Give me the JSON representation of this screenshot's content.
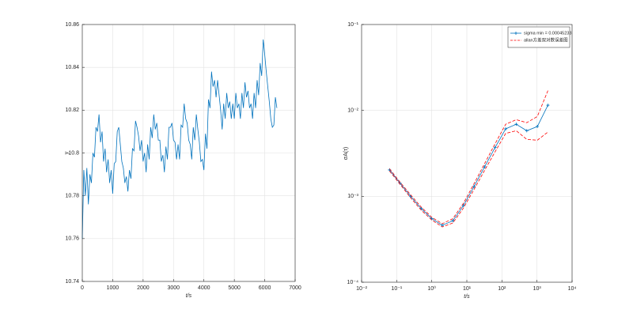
{
  "chart_data": [
    {
      "type": "line",
      "xlabel": "t/s",
      "ylabel": "y",
      "x": [
        0,
        50,
        100,
        150,
        200,
        250,
        300,
        350,
        400,
        450,
        500,
        550,
        600,
        650,
        700,
        750,
        800,
        850,
        900,
        950,
        1000,
        1050,
        1100,
        1150,
        1200,
        1250,
        1300,
        1350,
        1400,
        1450,
        1500,
        1550,
        1600,
        1650,
        1700,
        1750,
        1800,
        1850,
        1900,
        1950,
        2000,
        2050,
        2100,
        2150,
        2200,
        2250,
        2300,
        2350,
        2400,
        2450,
        2500,
        2550,
        2600,
        2650,
        2700,
        2750,
        2800,
        2850,
        2900,
        2950,
        3000,
        3050,
        3100,
        3150,
        3200,
        3250,
        3300,
        3350,
        3400,
        3450,
        3500,
        3550,
        3600,
        3650,
        3700,
        3750,
        3800,
        3850,
        3900,
        3950,
        4000,
        4050,
        4100,
        4150,
        4200,
        4250,
        4300,
        4350,
        4400,
        4450,
        4500,
        4550,
        4600,
        4650,
        4700,
        4750,
        4800,
        4850,
        4900,
        4950,
        5000,
        5050,
        5100,
        5150,
        5200,
        5250,
        5300,
        5350,
        5400,
        5450,
        5500,
        5550,
        5600,
        5650,
        5700,
        5750,
        5800,
        5850,
        5900,
        5950,
        6000,
        6050,
        6100,
        6150,
        6200,
        6250,
        6300,
        6350,
        6400
      ],
      "series": [
        {
          "color": "#0072bd",
          "values": [
            10.76,
            10.792,
            10.78,
            10.793,
            10.776,
            10.79,
            10.786,
            10.8,
            10.798,
            10.812,
            10.81,
            10.818,
            10.805,
            10.81,
            10.796,
            10.802,
            10.791,
            10.797,
            10.786,
            10.792,
            10.781,
            10.795,
            10.796,
            10.81,
            10.812,
            10.804,
            10.796,
            10.793,
            10.786,
            10.789,
            10.782,
            10.792,
            10.788,
            10.802,
            10.801,
            10.815,
            10.812,
            10.808,
            10.801,
            10.806,
            10.796,
            10.8,
            10.791,
            10.804,
            10.797,
            10.812,
            10.807,
            10.818,
            10.811,
            10.814,
            10.806,
            10.806,
            10.796,
            10.799,
            10.791,
            10.803,
            10.797,
            10.812,
            10.812,
            10.814,
            10.806,
            10.805,
            10.797,
            10.804,
            10.797,
            10.813,
            10.812,
            10.823,
            10.816,
            10.814,
            10.806,
            10.804,
            10.797,
            10.812,
            10.806,
            10.818,
            10.811,
            10.805,
            10.796,
            10.797,
            10.792,
            10.809,
            10.802,
            10.825,
            10.821,
            10.838,
            10.831,
            10.834,
            10.826,
            10.834,
            10.827,
            10.82,
            10.811,
            10.823,
            10.816,
            10.828,
            10.821,
            10.824,
            10.816,
            10.823,
            10.816,
            10.828,
            10.821,
            10.823,
            10.816,
            10.828,
            10.821,
            10.833,
            10.826,
            10.829,
            10.821,
            10.823,
            10.816,
            10.828,
            10.821,
            10.834,
            10.827,
            10.842,
            10.836,
            10.853,
            10.846,
            10.838,
            10.831,
            10.824,
            10.816,
            10.812,
            10.813,
            10.826,
            10.821
          ]
        }
      ],
      "xlim": [
        0,
        7000
      ],
      "xticks": [
        0,
        1000,
        2000,
        3000,
        4000,
        5000,
        6000,
        7000
      ],
      "ylim": [
        10.74,
        10.86
      ],
      "yticks": [
        10.74,
        10.76,
        10.78,
        10.8,
        10.82,
        10.84,
        10.86
      ],
      "grid": true
    },
    {
      "type": "line",
      "xscale": "log",
      "yscale": "log",
      "xlabel": "t/s",
      "ylabel": "σA(τ)",
      "x": [
        0.0625,
        0.125,
        0.25,
        0.5,
        1,
        2,
        4,
        8,
        16,
        32,
        64,
        128,
        256,
        512,
        1024,
        2048
      ],
      "series": [
        {
          "name": "sigma min = 0.00045233",
          "color": "#0072bd",
          "marker": "+",
          "values": [
            0.00203,
            0.00142,
            0.001,
            0.00072,
            0.00055,
            0.00046,
            0.00052,
            0.00078,
            0.0013,
            0.0022,
            0.0037,
            0.0061,
            0.0069,
            0.0058,
            0.0065,
            0.0115
          ]
        },
        {
          "name": "allan方差双对数误差图",
          "color": "#ff0000",
          "dash": true,
          "upper": [
            0.00209,
            0.00146,
            0.00104,
            0.00075,
            0.00057,
            0.00048,
            0.00055,
            0.00083,
            0.0014,
            0.0024,
            0.0041,
            0.0069,
            0.0078,
            0.0072,
            0.0085,
            0.017
          ],
          "lower": [
            0.00197,
            0.00138,
            0.00096,
            0.00069,
            0.00053,
            0.00044,
            0.00049,
            0.00073,
            0.0012,
            0.002,
            0.0033,
            0.0054,
            0.0058,
            0.0046,
            0.0045,
            0.0056
          ]
        }
      ],
      "xlim": [
        0.01,
        10000
      ],
      "xticks": [
        {
          "value": 0.01,
          "label": "10⁻²"
        },
        {
          "value": 0.1,
          "label": "10⁻¹"
        },
        {
          "value": 1,
          "label": "10⁰"
        },
        {
          "value": 10,
          "label": "10¹"
        },
        {
          "value": 100,
          "label": "10²"
        },
        {
          "value": 1000,
          "label": "10³"
        },
        {
          "value": 10000,
          "label": "10⁴"
        }
      ],
      "ylim": [
        0.0001,
        0.1
      ],
      "yticks": [
        {
          "value": 0.0001,
          "label": "10⁻⁴"
        },
        {
          "value": 0.001,
          "label": "10⁻³"
        },
        {
          "value": 0.01,
          "label": "10⁻²"
        },
        {
          "value": 0.1,
          "label": "10⁻¹"
        }
      ],
      "grid": true,
      "legend": "top-right"
    }
  ]
}
